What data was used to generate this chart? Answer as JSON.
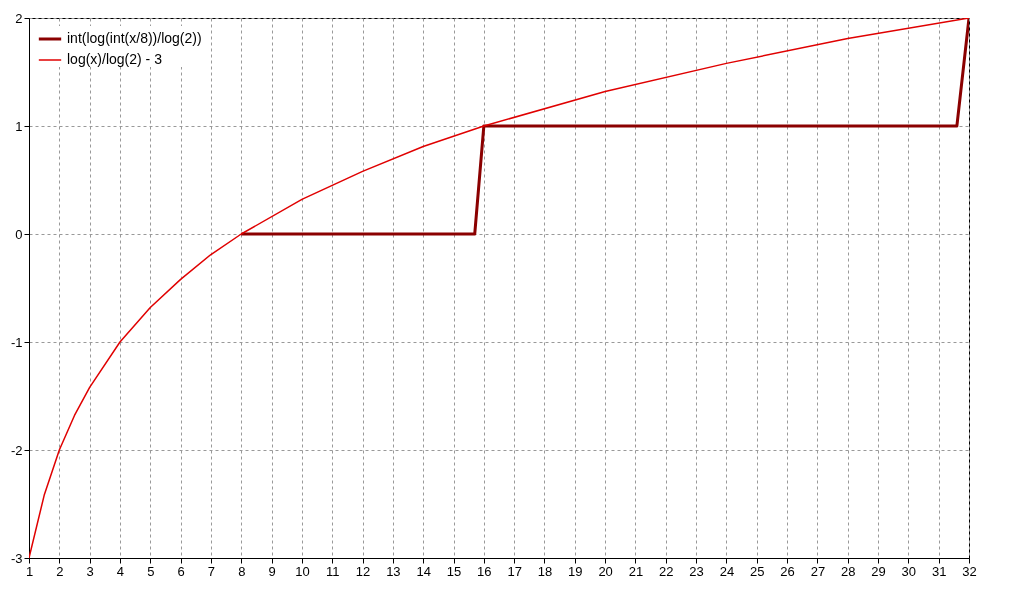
{
  "chart_data": {
    "type": "line",
    "xlim": [
      1,
      32
    ],
    "ylim": [
      -3,
      2
    ],
    "xticks": [
      1,
      2,
      3,
      4,
      5,
      6,
      7,
      8,
      9,
      10,
      11,
      12,
      13,
      14,
      15,
      16,
      17,
      18,
      19,
      20,
      21,
      22,
      23,
      24,
      25,
      26,
      27,
      28,
      29,
      30,
      31,
      32
    ],
    "yticks": [
      -3,
      -2,
      -1,
      0,
      1,
      2
    ],
    "grid": true,
    "legend": "top left",
    "line_style": "solid",
    "marker": "none",
    "series": [
      {
        "name": "int(log(int(x/8))/log(2))",
        "color": "#8b0000",
        "x": [
          8,
          15.7,
          16,
          31.6,
          32
        ],
        "values": [
          0,
          0,
          1,
          1,
          2
        ]
      },
      {
        "name": "log(x)/log(2) - 3",
        "color": "#e00000",
        "x": [
          1,
          1.5,
          2,
          2.5,
          3,
          4,
          5,
          6,
          7,
          8,
          10,
          12,
          14,
          16,
          20,
          24,
          28,
          32
        ],
        "values": [
          -3,
          -2.42,
          -2,
          -1.68,
          -1.42,
          -1,
          -0.68,
          -0.42,
          -0.19,
          0,
          0.32,
          0.58,
          0.81,
          1,
          1.32,
          1.58,
          1.81,
          2
        ]
      }
    ]
  }
}
